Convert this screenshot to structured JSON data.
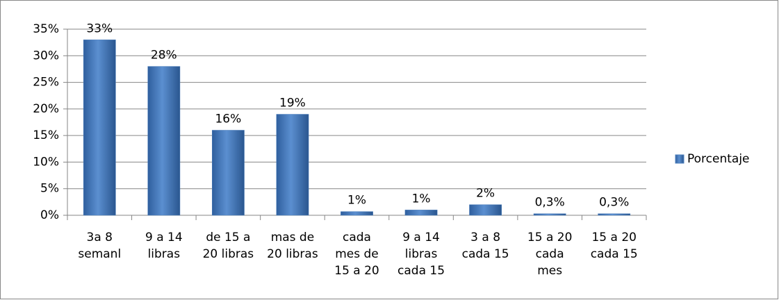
{
  "chart_data": {
    "type": "bar",
    "categories": [
      [
        "3a  8",
        "semanl"
      ],
      [
        "9 a 14",
        "libras"
      ],
      [
        "de 15 a",
        "20 libras"
      ],
      [
        "mas de",
        "20 libras"
      ],
      [
        "cada",
        "mes de",
        "15 a 20"
      ],
      [
        "9 a 14",
        "libras",
        "cada 15"
      ],
      [
        "3 a 8",
        "cada 15"
      ],
      [
        "15 a 20",
        "cada",
        "mes"
      ],
      [
        "15 a 20",
        "cada 15"
      ]
    ],
    "series": [
      {
        "name": "Porcentaje",
        "color": "#4f81bd",
        "values": [
          33,
          28,
          16,
          19,
          0.7,
          1,
          2,
          0.3,
          0.3
        ],
        "value_labels": [
          "33%",
          "28%",
          "16%",
          "19%",
          "1%",
          "1%",
          "2%",
          "0,3%",
          "0,3%"
        ]
      }
    ],
    "ylim": [
      0,
      35
    ],
    "yticks": [
      {
        "value": 0,
        "label": "0%"
      },
      {
        "value": 5,
        "label": "5%"
      },
      {
        "value": 10,
        "label": "10%"
      },
      {
        "value": 15,
        "label": "15%"
      },
      {
        "value": 20,
        "label": "20%"
      },
      {
        "value": 25,
        "label": "25%"
      },
      {
        "value": 30,
        "label": "30%"
      },
      {
        "value": 35,
        "label": "35%"
      }
    ],
    "grid": true,
    "legend": "right"
  }
}
